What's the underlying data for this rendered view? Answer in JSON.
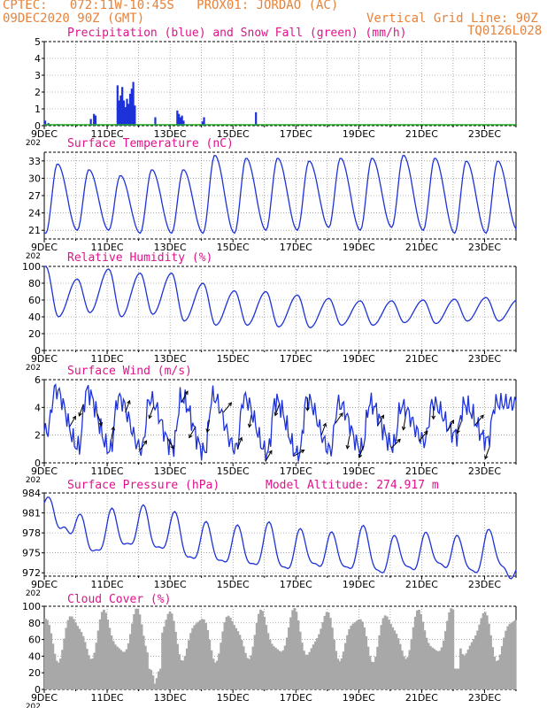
{
  "header": {
    "line1": "CPTEC:   072:11W-10:45S   PROX01: JORDAO (AC)",
    "line2_left": "09DEC2020 90Z (GMT)",
    "line2_right": "Vertical Grid Line: 90Z",
    "code": "TQ0126L028"
  },
  "colors": {
    "header": "#e8823a",
    "title": "#e0128a",
    "series": "#1d32d8",
    "snow": "#22aa22",
    "cloud": "#a8a8a8"
  },
  "x_ticks": [
    "9DEC",
    "11DEC",
    "13DEC",
    "15DEC",
    "17DEC",
    "19DEC",
    "21DEC",
    "23DEC"
  ],
  "x_year_stub": "202",
  "chart_data": [
    {
      "type": "bar",
      "title": "Precipitation (blue) and Snow Fall (green) (mm/h)",
      "ylim": [
        0,
        5
      ],
      "yticks": [
        "0",
        "1",
        "2",
        "3",
        "4",
        "5"
      ],
      "x_range": [
        "2020-12-09T09:00",
        "2020-12-24T09:00"
      ],
      "series": [
        {
          "name": "Precipitation",
          "color": "#1d32d8",
          "points": [
            [
              0.0,
              0.3
            ],
            [
              0.1,
              0.15
            ],
            [
              0.4,
              0.1
            ],
            [
              1.45,
              0.4
            ],
            [
              1.55,
              0.7
            ],
            [
              1.6,
              0.6
            ],
            [
              2.3,
              2.4
            ],
            [
              2.35,
              1.5
            ],
            [
              2.4,
              1.8
            ],
            [
              2.45,
              2.3
            ],
            [
              2.5,
              1.5
            ],
            [
              2.55,
              1.1
            ],
            [
              2.6,
              1.6
            ],
            [
              2.65,
              1.3
            ],
            [
              2.7,
              1.9
            ],
            [
              2.75,
              2.2
            ],
            [
              2.8,
              2.6
            ],
            [
              2.85,
              1.2
            ],
            [
              3.5,
              0.5
            ],
            [
              4.2,
              0.9
            ],
            [
              4.25,
              0.7
            ],
            [
              4.3,
              0.5
            ],
            [
              4.35,
              0.6
            ],
            [
              4.4,
              0.3
            ],
            [
              5.0,
              0.25
            ],
            [
              5.05,
              0.5
            ],
            [
              6.7,
              0.8
            ]
          ]
        },
        {
          "name": "Snow Fall",
          "color": "#22aa22",
          "values_mm_h": 0
        }
      ]
    },
    {
      "type": "line",
      "title": "Surface Temperature (nC)",
      "ylim": [
        19.5,
        34.5
      ],
      "yticks": [
        "21",
        "24",
        "27",
        "30",
        "33"
      ],
      "x_range": [
        "2020-12-09T09:00",
        "2020-12-24T09:00"
      ],
      "daily_min": [
        20.5,
        21.0,
        21.0,
        20.5,
        20.5,
        20.5,
        20.5,
        21.0,
        21.0,
        21.5,
        21.0,
        21.5,
        21.0,
        20.5,
        20.5,
        21.0
      ],
      "daily_max": [
        32.5,
        31.5,
        30.5,
        31.5,
        31.5,
        34.0,
        33.5,
        33.5,
        33.0,
        33.5,
        33.5,
        34.0,
        33.5,
        33.0,
        33.0
      ]
    },
    {
      "type": "line",
      "title": "Relative Humidity (%)",
      "ylim": [
        0,
        100
      ],
      "yticks": [
        "0",
        "20",
        "40",
        "60",
        "80",
        "100"
      ],
      "x_range": [
        "2020-12-09T09:00",
        "2020-12-24T09:00"
      ],
      "daily_max": [
        100,
        85,
        97,
        92,
        92,
        80,
        71,
        70,
        66,
        62,
        59,
        59,
        60,
        61,
        63,
        60
      ],
      "daily_min": [
        40,
        45,
        40,
        43,
        35,
        30,
        30,
        28,
        27,
        30,
        30,
        33,
        32,
        35,
        35
      ]
    },
    {
      "type": "line",
      "title": "Surface Wind (m/s)",
      "ylim": [
        0,
        6
      ],
      "yticks": [
        "0",
        "2",
        "4",
        "6"
      ],
      "x_range": [
        "2020-12-09T09:00",
        "2020-12-24T09:00"
      ],
      "speed_daily_peak": [
        5.3,
        5.2,
        4.7,
        4.6,
        4.7,
        4.8,
        4.7,
        4.5,
        4.6,
        4.3,
        4.3,
        4.1,
        4.3,
        4.2,
        4.3
      ],
      "speed_daily_low": [
        2.3,
        1.1,
        0.9,
        1.0,
        1.1,
        0.8,
        1.0,
        0.7,
        0.5,
        0.9,
        1.0,
        1.2,
        1.6,
        2.0,
        1.6
      ],
      "arrows_deg": [
        30,
        200,
        160,
        10,
        20,
        35,
        200,
        150,
        30,
        210,
        190,
        40,
        20,
        190,
        30,
        200,
        60,
        180,
        20,
        35,
        190,
        200,
        30,
        45,
        190,
        40,
        180,
        30,
        200,
        40,
        200
      ]
    },
    {
      "type": "line",
      "title": "Surface Pressure (hPa)",
      "annotation": "Model Altitude: 274.917 m",
      "ylim": [
        971.5,
        984
      ],
      "yticks": [
        "972",
        "975",
        "978",
        "981",
        "984"
      ],
      "x_range": [
        "2020-12-09T09:00",
        "2020-12-24T09:00"
      ],
      "daily_max": [
        982.5,
        980.0,
        981.0,
        981.5,
        980.5,
        979.0,
        978.5,
        979.0,
        978.0,
        977.5,
        978.5,
        977.0,
        977.5,
        977.0,
        978.0
      ],
      "daily_min": [
        978.0,
        974.5,
        975.5,
        975.0,
        973.5,
        973.0,
        972.5,
        972.0,
        972.5,
        972.0,
        971.5,
        972.0,
        972.5,
        971.5,
        972.0
      ]
    },
    {
      "type": "area",
      "title": "Cloud Cover (%)",
      "ylim": [
        0,
        100
      ],
      "yticks": [
        "0",
        "20",
        "40",
        "60",
        "80",
        "100"
      ],
      "x_range": [
        "2020-12-09T09:00",
        "2020-12-24T09:00"
      ],
      "typical_daily_range": [
        40,
        90
      ]
    }
  ]
}
